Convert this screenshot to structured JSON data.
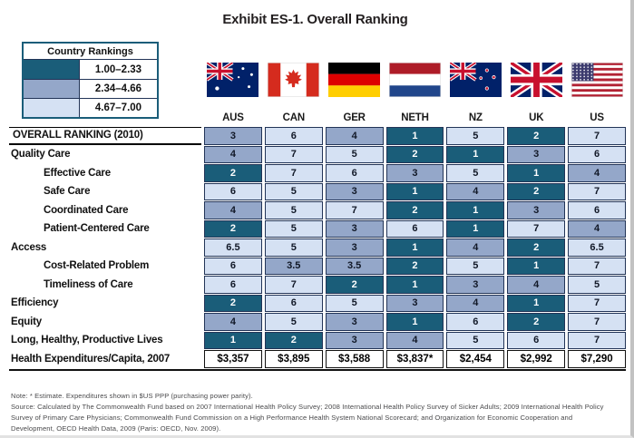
{
  "chart_data": {
    "type": "heatmap",
    "title": "Exhibit ES-1. Overall Ranking",
    "legend": {
      "title": "Country Rankings",
      "bands": [
        {
          "label": "1.00–2.33",
          "color": "#1A5D79"
        },
        {
          "label": "2.34–4.66",
          "color": "#94A7C9"
        },
        {
          "label": "4.67–7.00",
          "color": "#D5E1F3"
        }
      ]
    },
    "band_rule": {
      "dark_max": 2.33,
      "mid_max": 4.66
    },
    "columns": [
      "AUS",
      "CAN",
      "GER",
      "NETH",
      "NZ",
      "UK",
      "US"
    ],
    "flag_icons": [
      "australia-flag",
      "canada-flag",
      "germany-flag",
      "netherlands-flag",
      "new-zealand-flag",
      "uk-flag",
      "us-flag"
    ],
    "rows": [
      {
        "label": "OVERALL RANKING (2010)",
        "style": "overall",
        "values": [
          "3",
          "6",
          "4",
          "1",
          "5",
          "2",
          "7"
        ]
      },
      {
        "label": "Quality Care",
        "style": "section",
        "values": [
          "4",
          "7",
          "5",
          "2",
          "1",
          "3",
          "6"
        ]
      },
      {
        "label": "Effective Care",
        "style": "sub",
        "values": [
          "2",
          "7",
          "6",
          "3",
          "5",
          "1",
          "4"
        ]
      },
      {
        "label": "Safe Care",
        "style": "sub",
        "values": [
          "6",
          "5",
          "3",
          "1",
          "4",
          "2",
          "7"
        ]
      },
      {
        "label": "Coordinated Care",
        "style": "sub",
        "values": [
          "4",
          "5",
          "7",
          "2",
          "1",
          "3",
          "6"
        ]
      },
      {
        "label": "Patient-Centered Care",
        "style": "sub",
        "values": [
          "2",
          "5",
          "3",
          "6",
          "1",
          "7",
          "4"
        ]
      },
      {
        "label": "Access",
        "style": "section",
        "values": [
          "6.5",
          "5",
          "3",
          "1",
          "4",
          "2",
          "6.5"
        ]
      },
      {
        "label": "Cost-Related Problem",
        "style": "sub",
        "values": [
          "6",
          "3.5",
          "3.5",
          "2",
          "5",
          "1",
          "7"
        ]
      },
      {
        "label": "Timeliness of Care",
        "style": "sub",
        "values": [
          "6",
          "7",
          "2",
          "1",
          "3",
          "4",
          "5"
        ]
      },
      {
        "label": "Efficiency",
        "style": "section",
        "values": [
          "2",
          "6",
          "5",
          "3",
          "4",
          "1",
          "7"
        ]
      },
      {
        "label": "Equity",
        "style": "section",
        "values": [
          "4",
          "5",
          "3",
          "1",
          "6",
          "2",
          "7"
        ]
      },
      {
        "label": "Long, Healthy, Productive Lives",
        "style": "section",
        "values": [
          "1",
          "2",
          "3",
          "4",
          "5",
          "6",
          "7"
        ]
      },
      {
        "label": "Health Expenditures/Capita, 2007",
        "style": "currency",
        "values": [
          "$3,357",
          "$3,895",
          "$3,588",
          "$3,837*",
          "$2,454",
          "$2,992",
          "$7,290"
        ]
      }
    ],
    "notes": {
      "note": "Note: * Estimate. Expenditures shown in $US PPP (purchasing power parity).",
      "source": "Source: Calculated by The Commonwealth Fund based on 2007 International Health Policy Survey; 2008 International Health Policy Survey of Sicker Adults; 2009 International Health Policy Survey of Primary Care Physicians; Commonwealth Fund Commission on a High Performance Health System National Scorecard; and Organization for Economic Cooperation and Development, OECD Health Data, 2009 (Paris: OECD, Nov. 2009)."
    },
    "colors": {
      "cell_border": "#223457",
      "legend_border": "#1A5D79",
      "rule": "#111111",
      "dark_band_text": "#FFFFFF",
      "light_band_text": "#111827"
    }
  }
}
